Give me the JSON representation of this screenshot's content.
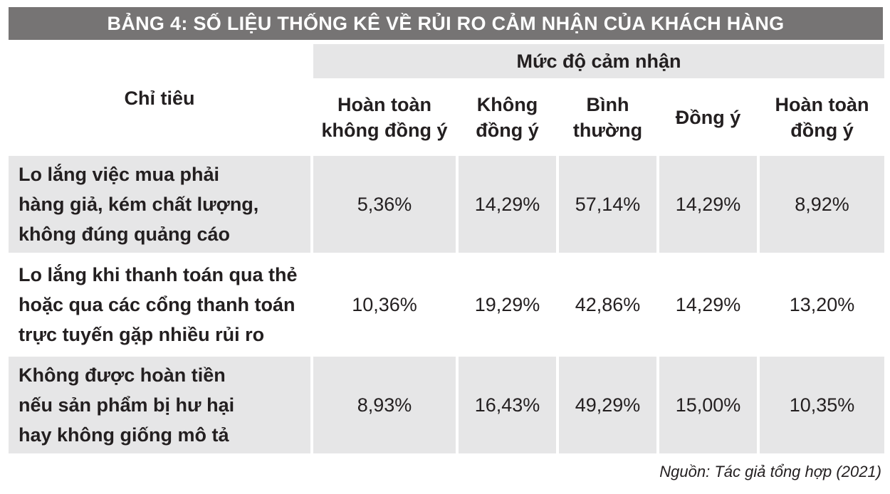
{
  "title": "BẢNG 4: SỐ LIỆU THỐNG KÊ VỀ RỦI RO CẢM NHẬN CỦA KHÁCH HÀNG",
  "header": {
    "stub": "Chỉ tiêu",
    "group": "Mức độ cảm nhận",
    "columns": [
      "Hoàn toàn\nkhông đồng ý",
      "Không\nđồng ý",
      "Bình\nthường",
      "Đồng ý",
      "Hoàn toàn\nđồng ý"
    ]
  },
  "rows": [
    {
      "label": "Lo lắng việc mua phải\nhàng giả, kém chất lượng,\nkhông đúng quảng cáo",
      "values": [
        "5,36%",
        "14,29%",
        "57,14%",
        "14,29%",
        "8,92%"
      ]
    },
    {
      "label": "Lo lắng khi thanh toán qua thẻ\nhoặc qua các cổng thanh toán\ntrực tuyến gặp nhiều rủi ro",
      "values": [
        "10,36%",
        "19,29%",
        "42,86%",
        "14,29%",
        "13,20%"
      ]
    },
    {
      "label": "Không được hoàn tiền\nnếu sản phẩm bị hư hại\nhay không giống mô tả",
      "values": [
        "8,93%",
        "16,43%",
        "49,29%",
        "15,00%",
        "10,35%"
      ]
    }
  ],
  "source": "Nguồn: Tác giả tổng hợp (2021)"
}
